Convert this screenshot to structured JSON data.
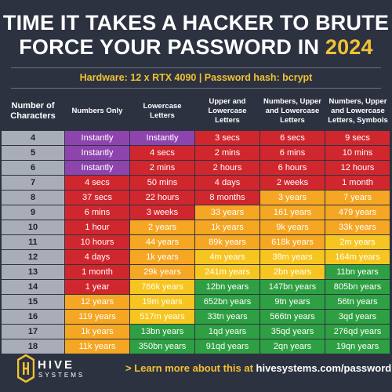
{
  "title": {
    "line1": "TIME IT TAKES A HACKER TO BRUTE",
    "line2_text": "FORCE YOUR PASSWORD IN ",
    "year": "2024"
  },
  "hardware": "Hardware: 12 x RTX 4090 | Password hash: bcrypt",
  "headers": [
    "Number of Characters",
    "Numbers Only",
    "Lowercase Letters",
    "Upper and Lowercase Letters",
    "Numbers, Upper and Lowercase Letters",
    "Numbers, Upper and Lowercase Letters, Symbols"
  ],
  "colors": {
    "purple": "#8e44ad",
    "red": "#d0272e",
    "orange": "#f5a623",
    "yellow": "#f7c520",
    "green": "#2ea043",
    "header_bg": "#a8adb8"
  },
  "rows": [
    {
      "n": "4",
      "cells": [
        "Instantly",
        "Instantly",
        "3 secs",
        "6 secs",
        "9 secs"
      ],
      "colors": [
        "purple",
        "purple",
        "red",
        "red",
        "red"
      ]
    },
    {
      "n": "5",
      "cells": [
        "Instantly",
        "4 secs",
        "2 mins",
        "6 mins",
        "10 mins"
      ],
      "colors": [
        "purple",
        "red",
        "red",
        "red",
        "red"
      ]
    },
    {
      "n": "6",
      "cells": [
        "Instantly",
        "2 mins",
        "2 hours",
        "6 hours",
        "12 hours"
      ],
      "colors": [
        "purple",
        "red",
        "red",
        "red",
        "red"
      ]
    },
    {
      "n": "7",
      "cells": [
        "4 secs",
        "50 mins",
        "4 days",
        "2 weeks",
        "1 month"
      ],
      "colors": [
        "red",
        "red",
        "red",
        "red",
        "red"
      ]
    },
    {
      "n": "8",
      "cells": [
        "37 secs",
        "22 hours",
        "8 months",
        "3 years",
        "7 years"
      ],
      "colors": [
        "red",
        "red",
        "red",
        "orange",
        "orange"
      ]
    },
    {
      "n": "9",
      "cells": [
        "6 mins",
        "3 weeks",
        "33 years",
        "161 years",
        "479 years"
      ],
      "colors": [
        "red",
        "red",
        "orange",
        "orange",
        "orange"
      ]
    },
    {
      "n": "10",
      "cells": [
        "1 hour",
        "2 years",
        "1k years",
        "9k years",
        "33k years"
      ],
      "colors": [
        "red",
        "orange",
        "orange",
        "orange",
        "orange"
      ]
    },
    {
      "n": "11",
      "cells": [
        "10 hours",
        "44 years",
        "89k years",
        "618k years",
        "2m years"
      ],
      "colors": [
        "red",
        "orange",
        "orange",
        "orange",
        "yellow"
      ]
    },
    {
      "n": "12",
      "cells": [
        "4 days",
        "1k years",
        "4m years",
        "38m years",
        "164m years"
      ],
      "colors": [
        "red",
        "orange",
        "yellow",
        "yellow",
        "yellow"
      ]
    },
    {
      "n": "13",
      "cells": [
        "1 month",
        "29k years",
        "241m years",
        "2bn years",
        "11bn years"
      ],
      "colors": [
        "red",
        "orange",
        "yellow",
        "yellow",
        "green"
      ]
    },
    {
      "n": "14",
      "cells": [
        "1 year",
        "766k years",
        "12bn years",
        "147bn years",
        "805bn years"
      ],
      "colors": [
        "red",
        "yellow",
        "green",
        "green",
        "green"
      ]
    },
    {
      "n": "15",
      "cells": [
        "12 years",
        "19m years",
        "652bn years",
        "9tn years",
        "56tn years"
      ],
      "colors": [
        "orange",
        "yellow",
        "green",
        "green",
        "green"
      ]
    },
    {
      "n": "16",
      "cells": [
        "119 years",
        "517m years",
        "33tn years",
        "566tn years",
        "3qd years"
      ],
      "colors": [
        "orange",
        "yellow",
        "green",
        "green",
        "green"
      ]
    },
    {
      "n": "17",
      "cells": [
        "1k years",
        "13bn years",
        "1qd years",
        "35qd years",
        "276qd years"
      ],
      "colors": [
        "orange",
        "green",
        "green",
        "green",
        "green"
      ]
    },
    {
      "n": "18",
      "cells": [
        "11k years",
        "350bn years",
        "91qd years",
        "2qn years",
        "19qn years"
      ],
      "colors": [
        "orange",
        "green",
        "green",
        "green",
        "green"
      ]
    }
  ],
  "footer": {
    "brand_line1": "HIVE",
    "brand_line2": "SYSTEMS",
    "arrow": ">",
    "cta_lead": "Learn more about this at ",
    "cta_site": "hivesystems.com/password"
  }
}
